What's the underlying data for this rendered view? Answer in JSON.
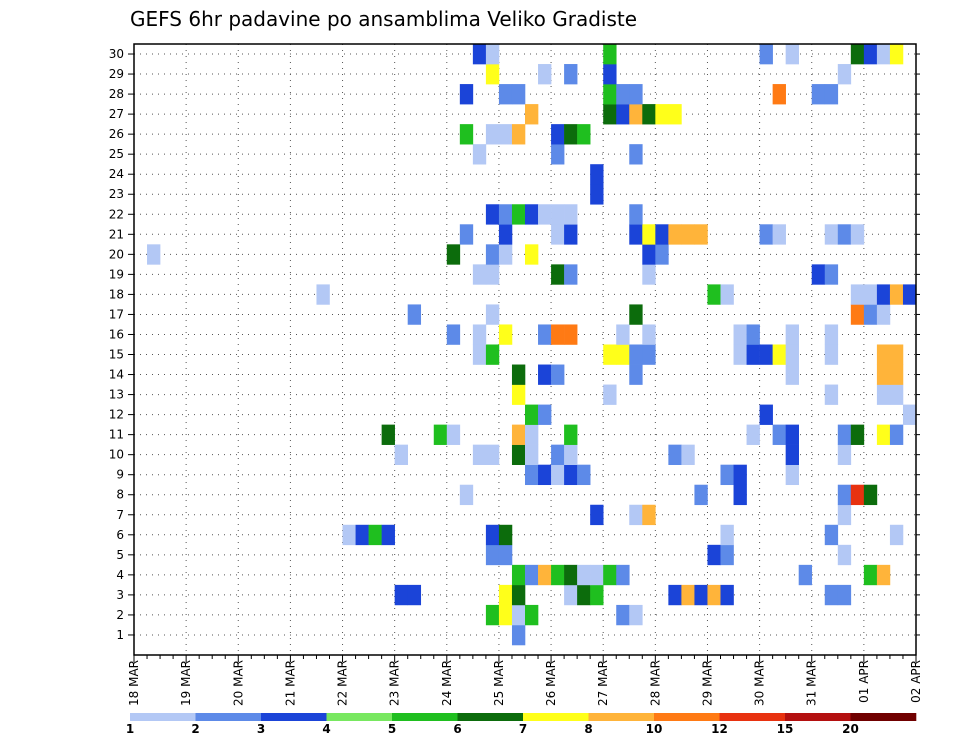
{
  "chart_data": {
    "type": "heatmap",
    "title": "GEFS 6hr padavine po ansamblima Veliko Gradiste",
    "xlabel": "",
    "ylabel": "",
    "x_tick_labels": [
      "18 MAR",
      "19 MAR",
      "20 MAR",
      "21 MAR",
      "22 MAR",
      "23 MAR",
      "24 MAR",
      "25 MAR",
      "26 MAR",
      "27 MAR",
      "28 MAR",
      "29 MAR",
      "30 MAR",
      "31 MAR",
      "01 APR",
      "02 APR"
    ],
    "y_tick_labels": [
      1,
      2,
      3,
      4,
      5,
      6,
      7,
      8,
      9,
      10,
      11,
      12,
      13,
      14,
      15,
      16,
      17,
      18,
      19,
      20,
      21,
      22,
      23,
      24,
      25,
      26,
      27,
      28,
      29,
      30
    ],
    "xlim_steps": [
      0,
      60
    ],
    "steps_per_day": 4,
    "ylim": [
      0,
      30
    ],
    "grid": true,
    "colorbar": {
      "labels": [
        "1",
        "2",
        "3",
        "4",
        "5",
        "6",
        "7",
        "8",
        "10",
        "12",
        "15",
        "20"
      ],
      "colors": [
        "#b3c8f5",
        "#5d8ae8",
        "#1b44d8",
        "#78e860",
        "#1fbf1f",
        "#0c6c0c",
        "#ffff1a",
        "#ffb43a",
        "#ff7a14",
        "#e83210",
        "#b41010",
        "#700000"
      ]
    },
    "cells": [
      {
        "m": 1,
        "t": 30,
        "v": 2
      },
      {
        "m": 2,
        "t": 28,
        "v": 5
      },
      {
        "m": 2,
        "t": 29,
        "v": 7
      },
      {
        "m": 2,
        "t": 30,
        "v": 1
      },
      {
        "m": 2,
        "t": 31,
        "v": 5
      },
      {
        "m": 2,
        "t": 38,
        "v": 2
      },
      {
        "m": 2,
        "t": 39,
        "v": 1
      },
      {
        "m": 3,
        "t": 21,
        "v": 3
      },
      {
        "m": 3,
        "t": 22,
        "v": 3
      },
      {
        "m": 3,
        "t": 29,
        "v": 7
      },
      {
        "m": 3,
        "t": 30,
        "v": 6
      },
      {
        "m": 3,
        "t": 34,
        "v": 1
      },
      {
        "m": 3,
        "t": 35,
        "v": 6
      },
      {
        "m": 3,
        "t": 36,
        "v": 5
      },
      {
        "m": 3,
        "t": 42,
        "v": 3
      },
      {
        "m": 3,
        "t": 43,
        "v": 9
      },
      {
        "m": 3,
        "t": 44,
        "v": 3
      },
      {
        "m": 3,
        "t": 45,
        "v": 8
      },
      {
        "m": 3,
        "t": 46,
        "v": 3
      },
      {
        "m": 3,
        "t": 54,
        "v": 2
      },
      {
        "m": 3,
        "t": 55,
        "v": 2
      },
      {
        "m": 4,
        "t": 30,
        "v": 5
      },
      {
        "m": 4,
        "t": 31,
        "v": 2
      },
      {
        "m": 4,
        "t": 32,
        "v": 9
      },
      {
        "m": 4,
        "t": 33,
        "v": 5
      },
      {
        "m": 4,
        "t": 34,
        "v": 6
      },
      {
        "m": 4,
        "t": 35,
        "v": 1
      },
      {
        "m": 4,
        "t": 36,
        "v": 1
      },
      {
        "m": 4,
        "t": 37,
        "v": 5
      },
      {
        "m": 4,
        "t": 38,
        "v": 2
      },
      {
        "m": 4,
        "t": 52,
        "v": 2
      },
      {
        "m": 4,
        "t": 57,
        "v": 5
      },
      {
        "m": 4,
        "t": 58,
        "v": 9
      },
      {
        "m": 5,
        "t": 28,
        "v": 2
      },
      {
        "m": 5,
        "t": 29,
        "v": 2
      },
      {
        "m": 5,
        "t": 45,
        "v": 3
      },
      {
        "m": 5,
        "t": 46,
        "v": 2
      },
      {
        "m": 5,
        "t": 55,
        "v": 1
      },
      {
        "m": 6,
        "t": 17,
        "v": 1
      },
      {
        "m": 6,
        "t": 18,
        "v": 3
      },
      {
        "m": 6,
        "t": 19,
        "v": 5
      },
      {
        "m": 6,
        "t": 20,
        "v": 3
      },
      {
        "m": 6,
        "t": 28,
        "v": 3
      },
      {
        "m": 6,
        "t": 29,
        "v": 6
      },
      {
        "m": 6,
        "t": 46,
        "v": 1
      },
      {
        "m": 6,
        "t": 54,
        "v": 2
      },
      {
        "m": 6,
        "t": 59,
        "v": 1
      },
      {
        "m": 7,
        "t": 36,
        "v": 3
      },
      {
        "m": 7,
        "t": 39,
        "v": 1
      },
      {
        "m": 7,
        "t": 40,
        "v": 9
      },
      {
        "m": 7,
        "t": 55,
        "v": 1
      },
      {
        "m": 8,
        "t": 26,
        "v": 1
      },
      {
        "m": 8,
        "t": 44,
        "v": 2
      },
      {
        "m": 8,
        "t": 47,
        "v": 3
      },
      {
        "m": 8,
        "t": 55,
        "v": 2
      },
      {
        "m": 8,
        "t": 56,
        "v": 12
      },
      {
        "m": 8,
        "t": 57,
        "v": 6
      },
      {
        "m": 9,
        "t": 31,
        "v": 2
      },
      {
        "m": 9,
        "t": 32,
        "v": 3
      },
      {
        "m": 9,
        "t": 33,
        "v": 1
      },
      {
        "m": 9,
        "t": 34,
        "v": 3
      },
      {
        "m": 9,
        "t": 35,
        "v": 2
      },
      {
        "m": 9,
        "t": 46,
        "v": 2
      },
      {
        "m": 9,
        "t": 47,
        "v": 3
      },
      {
        "m": 9,
        "t": 51,
        "v": 1
      },
      {
        "m": 10,
        "t": 21,
        "v": 1
      },
      {
        "m": 10,
        "t": 27,
        "v": 1
      },
      {
        "m": 10,
        "t": 28,
        "v": 1
      },
      {
        "m": 10,
        "t": 30,
        "v": 6
      },
      {
        "m": 10,
        "t": 31,
        "v": 1
      },
      {
        "m": 10,
        "t": 33,
        "v": 2
      },
      {
        "m": 10,
        "t": 34,
        "v": 1
      },
      {
        "m": 10,
        "t": 42,
        "v": 2
      },
      {
        "m": 10,
        "t": 43,
        "v": 1
      },
      {
        "m": 10,
        "t": 51,
        "v": 3
      },
      {
        "m": 10,
        "t": 55,
        "v": 1
      },
      {
        "m": 11,
        "t": 20,
        "v": 6
      },
      {
        "m": 11,
        "t": 24,
        "v": 5
      },
      {
        "m": 11,
        "t": 25,
        "v": 1
      },
      {
        "m": 11,
        "t": 30,
        "v": 9
      },
      {
        "m": 11,
        "t": 31,
        "v": 1
      },
      {
        "m": 11,
        "t": 34,
        "v": 5
      },
      {
        "m": 11,
        "t": 48,
        "v": 1
      },
      {
        "m": 11,
        "t": 50,
        "v": 2
      },
      {
        "m": 11,
        "t": 51,
        "v": 3
      },
      {
        "m": 11,
        "t": 55,
        "v": 2
      },
      {
        "m": 11,
        "t": 56,
        "v": 6
      },
      {
        "m": 11,
        "t": 58,
        "v": 7
      },
      {
        "m": 11,
        "t": 59,
        "v": 2
      },
      {
        "m": 12,
        "t": 31,
        "v": 5
      },
      {
        "m": 12,
        "t": 32,
        "v": 2
      },
      {
        "m": 12,
        "t": 49,
        "v": 3
      },
      {
        "m": 12,
        "t": 60,
        "v": 1
      },
      {
        "m": 13,
        "t": 30,
        "v": 7
      },
      {
        "m": 13,
        "t": 37,
        "v": 1
      },
      {
        "m": 13,
        "t": 54,
        "v": 1
      },
      {
        "m": 13,
        "t": 58,
        "v": 1
      },
      {
        "m": 13,
        "t": 59,
        "v": 1
      },
      {
        "m": 14,
        "t": 30,
        "v": 6
      },
      {
        "m": 14,
        "t": 32,
        "v": 3
      },
      {
        "m": 14,
        "t": 33,
        "v": 2
      },
      {
        "m": 14,
        "t": 39,
        "v": 2
      },
      {
        "m": 14,
        "t": 51,
        "v": 1
      },
      {
        "m": 14,
        "t": 58,
        "v": 8
      },
      {
        "m": 14,
        "t": 59,
        "v": 8
      },
      {
        "m": 15,
        "t": 27,
        "v": 1
      },
      {
        "m": 15,
        "t": 28,
        "v": 5
      },
      {
        "m": 15,
        "t": 37,
        "v": 7
      },
      {
        "m": 15,
        "t": 38,
        "v": 7
      },
      {
        "m": 15,
        "t": 39,
        "v": 2
      },
      {
        "m": 15,
        "t": 40,
        "v": 2
      },
      {
        "m": 15,
        "t": 47,
        "v": 1
      },
      {
        "m": 15,
        "t": 48,
        "v": 3
      },
      {
        "m": 15,
        "t": 49,
        "v": 3
      },
      {
        "m": 15,
        "t": 50,
        "v": 7
      },
      {
        "m": 15,
        "t": 51,
        "v": 1
      },
      {
        "m": 15,
        "t": 54,
        "v": 1
      },
      {
        "m": 15,
        "t": 58,
        "v": 8
      },
      {
        "m": 15,
        "t": 59,
        "v": 8
      },
      {
        "m": 16,
        "t": 25,
        "v": 2
      },
      {
        "m": 16,
        "t": 27,
        "v": 1
      },
      {
        "m": 16,
        "t": 29,
        "v": 7
      },
      {
        "m": 16,
        "t": 32,
        "v": 2
      },
      {
        "m": 16,
        "t": 33,
        "v": 11
      },
      {
        "m": 16,
        "t": 34,
        "v": 10
      },
      {
        "m": 16,
        "t": 38,
        "v": 1
      },
      {
        "m": 16,
        "t": 40,
        "v": 1
      },
      {
        "m": 16,
        "t": 47,
        "v": 1
      },
      {
        "m": 16,
        "t": 48,
        "v": 2
      },
      {
        "m": 16,
        "t": 51,
        "v": 1
      },
      {
        "m": 16,
        "t": 54,
        "v": 1
      },
      {
        "m": 17,
        "t": 22,
        "v": 2
      },
      {
        "m": 17,
        "t": 28,
        "v": 1
      },
      {
        "m": 17,
        "t": 39,
        "v": 6
      },
      {
        "m": 17,
        "t": 56,
        "v": 10
      },
      {
        "m": 17,
        "t": 57,
        "v": 2
      },
      {
        "m": 17,
        "t": 58,
        "v": 1
      },
      {
        "m": 18,
        "t": 15,
        "v": 1
      },
      {
        "m": 18,
        "t": 45,
        "v": 5
      },
      {
        "m": 18,
        "t": 46,
        "v": 1
      },
      {
        "m": 18,
        "t": 56,
        "v": 1
      },
      {
        "m": 18,
        "t": 57,
        "v": 1
      },
      {
        "m": 18,
        "t": 58,
        "v": 3
      },
      {
        "m": 18,
        "t": 59,
        "v": 9
      },
      {
        "m": 18,
        "t": 60,
        "v": 3
      },
      {
        "m": 19,
        "t": 27,
        "v": 1
      },
      {
        "m": 19,
        "t": 28,
        "v": 1
      },
      {
        "m": 19,
        "t": 33,
        "v": 6
      },
      {
        "m": 19,
        "t": 34,
        "v": 2
      },
      {
        "m": 19,
        "t": 40,
        "v": 1
      },
      {
        "m": 19,
        "t": 53,
        "v": 3
      },
      {
        "m": 19,
        "t": 54,
        "v": 2
      },
      {
        "m": 20,
        "t": 2,
        "v": 1
      },
      {
        "m": 20,
        "t": 25,
        "v": 6
      },
      {
        "m": 20,
        "t": 28,
        "v": 2
      },
      {
        "m": 20,
        "t": 29,
        "v": 1
      },
      {
        "m": 20,
        "t": 31,
        "v": 7
      },
      {
        "m": 20,
        "t": 40,
        "v": 3
      },
      {
        "m": 20,
        "t": 41,
        "v": 2
      },
      {
        "m": 21,
        "t": 26,
        "v": 2
      },
      {
        "m": 21,
        "t": 29,
        "v": 3
      },
      {
        "m": 21,
        "t": 33,
        "v": 1
      },
      {
        "m": 21,
        "t": 34,
        "v": 3
      },
      {
        "m": 21,
        "t": 39,
        "v": 3
      },
      {
        "m": 21,
        "t": 40,
        "v": 7
      },
      {
        "m": 21,
        "t": 41,
        "v": 3
      },
      {
        "m": 21,
        "t": 42,
        "v": 8
      },
      {
        "m": 21,
        "t": 43,
        "v": 9
      },
      {
        "m": 21,
        "t": 44,
        "v": 8
      },
      {
        "m": 21,
        "t": 49,
        "v": 2
      },
      {
        "m": 21,
        "t": 50,
        "v": 1
      },
      {
        "m": 21,
        "t": 54,
        "v": 1
      },
      {
        "m": 21,
        "t": 55,
        "v": 2
      },
      {
        "m": 21,
        "t": 56,
        "v": 1
      },
      {
        "m": 22,
        "t": 28,
        "v": 3
      },
      {
        "m": 22,
        "t": 29,
        "v": 2
      },
      {
        "m": 22,
        "t": 30,
        "v": 5
      },
      {
        "m": 22,
        "t": 31,
        "v": 3
      },
      {
        "m": 22,
        "t": 32,
        "v": 1
      },
      {
        "m": 22,
        "t": 33,
        "v": 1
      },
      {
        "m": 22,
        "t": 34,
        "v": 1
      },
      {
        "m": 22,
        "t": 39,
        "v": 2
      },
      {
        "m": 23,
        "t": 36,
        "v": 3
      },
      {
        "m": 24,
        "t": 36,
        "v": 3
      },
      {
        "m": 25,
        "t": 27,
        "v": 1
      },
      {
        "m": 25,
        "t": 33,
        "v": 2
      },
      {
        "m": 25,
        "t": 39,
        "v": 2
      },
      {
        "m": 26,
        "t": 26,
        "v": 5
      },
      {
        "m": 26,
        "t": 28,
        "v": 1
      },
      {
        "m": 26,
        "t": 29,
        "v": 1
      },
      {
        "m": 26,
        "t": 30,
        "v": 8
      },
      {
        "m": 26,
        "t": 33,
        "v": 3
      },
      {
        "m": 26,
        "t": 34,
        "v": 6
      },
      {
        "m": 26,
        "t": 35,
        "v": 5
      },
      {
        "m": 27,
        "t": 31,
        "v": 8
      },
      {
        "m": 27,
        "t": 37,
        "v": 6
      },
      {
        "m": 27,
        "t": 38,
        "v": 3
      },
      {
        "m": 27,
        "t": 39,
        "v": 9
      },
      {
        "m": 27,
        "t": 40,
        "v": 6
      },
      {
        "m": 27,
        "t": 41,
        "v": 7
      },
      {
        "m": 27,
        "t": 42,
        "v": 7
      },
      {
        "m": 28,
        "t": 26,
        "v": 3
      },
      {
        "m": 28,
        "t": 29,
        "v": 2
      },
      {
        "m": 28,
        "t": 30,
        "v": 2
      },
      {
        "m": 28,
        "t": 37,
        "v": 5
      },
      {
        "m": 28,
        "t": 38,
        "v": 2
      },
      {
        "m": 28,
        "t": 39,
        "v": 2
      },
      {
        "m": 28,
        "t": 50,
        "v": 11
      },
      {
        "m": 28,
        "t": 53,
        "v": 2
      },
      {
        "m": 28,
        "t": 54,
        "v": 2
      },
      {
        "m": 29,
        "t": 28,
        "v": 7
      },
      {
        "m": 29,
        "t": 32,
        "v": 1
      },
      {
        "m": 29,
        "t": 34,
        "v": 2
      },
      {
        "m": 29,
        "t": 37,
        "v": 3
      },
      {
        "m": 29,
        "t": 55,
        "v": 1
      },
      {
        "m": 30,
        "t": 27,
        "v": 3
      },
      {
        "m": 30,
        "t": 28,
        "v": 1
      },
      {
        "m": 30,
        "t": 37,
        "v": 5
      },
      {
        "m": 30,
        "t": 49,
        "v": 2
      },
      {
        "m": 30,
        "t": 51,
        "v": 1
      },
      {
        "m": 30,
        "t": 56,
        "v": 6
      },
      {
        "m": 30,
        "t": 57,
        "v": 3
      },
      {
        "m": 30,
        "t": 58,
        "v": 1
      },
      {
        "m": 30,
        "t": 59,
        "v": 7
      }
    ]
  }
}
